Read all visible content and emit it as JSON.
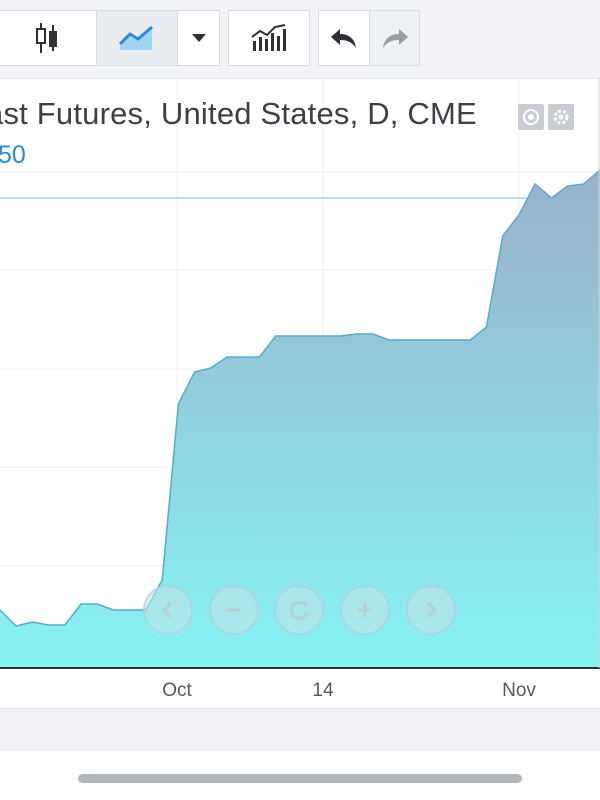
{
  "toolbar": {
    "buttons": [
      {
        "name": "candlestick-icon"
      },
      {
        "name": "area-chart-icon",
        "active": true
      },
      {
        "name": "chevron-down-icon"
      },
      {
        "name": "indicators-icon"
      },
      {
        "name": "undo-icon"
      },
      {
        "name": "redo-icon"
      }
    ]
  },
  "legend": {
    "title": "ast Futures, United States, D, CME",
    "value": "50"
  },
  "nav_controls": [
    "chevron-left-icon",
    "zoom-out-icon",
    "reset-icon",
    "zoom-in-icon",
    "chevron-right-icon"
  ],
  "chart_data": {
    "type": "area",
    "x_ticks": [
      "Oct",
      "14",
      "Nov"
    ],
    "series": [
      {
        "values": [
          610,
          626,
          622,
          625,
          625,
          604,
          604,
          610,
          610,
          610,
          580,
          404,
          372,
          368,
          357,
          357,
          357,
          336,
          336,
          336,
          336,
          336,
          334,
          334,
          340,
          340,
          340,
          340,
          340,
          340,
          327,
          236,
          215,
          184,
          198,
          186,
          184,
          170
        ]
      }
    ],
    "current_value_line": true,
    "fill_gradient": [
      "#9ab0c8",
      "#86f3f5"
    ],
    "line_color": "#5da9c9"
  }
}
